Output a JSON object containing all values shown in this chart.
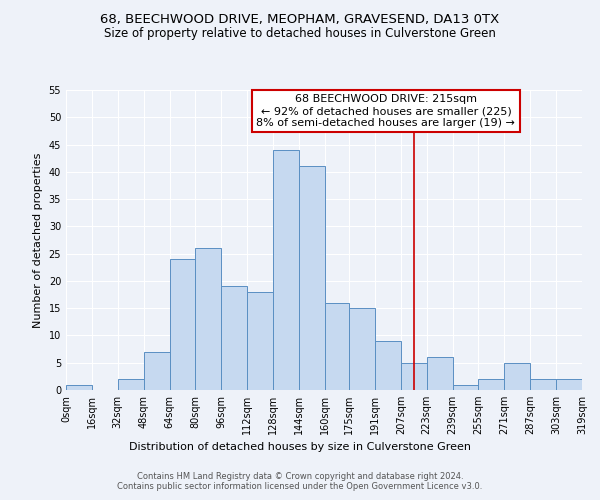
{
  "title": "68, BEECHWOOD DRIVE, MEOPHAM, GRAVESEND, DA13 0TX",
  "subtitle": "Size of property relative to detached houses in Culverstone Green",
  "xlabel": "Distribution of detached houses by size in Culverstone Green",
  "ylabel": "Number of detached properties",
  "bin_edges": [
    0,
    16,
    32,
    48,
    64,
    80,
    96,
    112,
    128,
    144,
    160,
    175,
    191,
    207,
    223,
    239,
    255,
    271,
    287,
    303,
    319
  ],
  "bar_heights": [
    1,
    0,
    2,
    7,
    24,
    26,
    19,
    18,
    44,
    41,
    16,
    15,
    9,
    5,
    6,
    1,
    2,
    5,
    2,
    2
  ],
  "bar_color": "#c6d9f0",
  "bar_edge_color": "#5a8fc3",
  "vline_x": 215,
  "vline_color": "#cc0000",
  "annotation_line1": "68 BEECHWOOD DRIVE: 215sqm",
  "annotation_line2": "← 92% of detached houses are smaller (225)",
  "annotation_line3": "8% of semi-detached houses are larger (19) →",
  "ylim": [
    0,
    55
  ],
  "yticks": [
    0,
    5,
    10,
    15,
    20,
    25,
    30,
    35,
    40,
    45,
    50,
    55
  ],
  "tick_labels": [
    "0sqm",
    "16sqm",
    "32sqm",
    "48sqm",
    "64sqm",
    "80sqm",
    "96sqm",
    "112sqm",
    "128sqm",
    "144sqm",
    "160sqm",
    "175sqm",
    "191sqm",
    "207sqm",
    "223sqm",
    "239sqm",
    "255sqm",
    "271sqm",
    "287sqm",
    "303sqm",
    "319sqm"
  ],
  "footer_line1": "Contains HM Land Registry data © Crown copyright and database right 2024.",
  "footer_line2": "Contains public sector information licensed under the Open Government Licence v3.0.",
  "background_color": "#eef2f9",
  "title_fontsize": 9.5,
  "subtitle_fontsize": 8.5,
  "axis_label_fontsize": 8,
  "tick_fontsize": 7,
  "footer_fontsize": 6,
  "annotation_fontsize": 8
}
